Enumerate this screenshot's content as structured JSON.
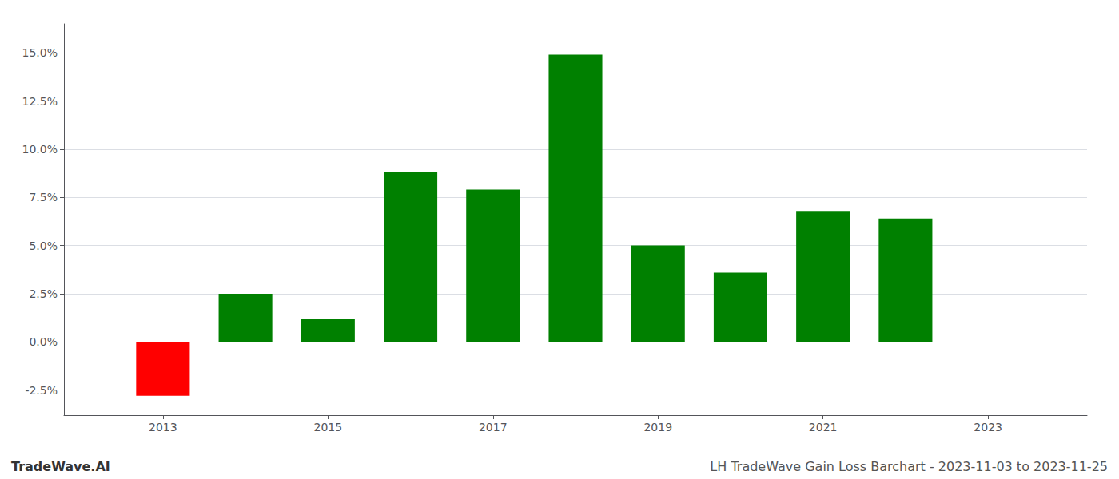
{
  "chart_data": {
    "type": "bar",
    "x": [
      2013,
      2014,
      2015,
      2016,
      2017,
      2018,
      2019,
      2020,
      2021,
      2022
    ],
    "values": [
      -0.028,
      0.025,
      0.012,
      0.088,
      0.079,
      0.149,
      0.05,
      0.036,
      0.068,
      0.064
    ],
    "colors": [
      "#ff0000",
      "#008000",
      "#008000",
      "#008000",
      "#008000",
      "#008000",
      "#008000",
      "#008000",
      "#008000",
      "#008000"
    ],
    "xlim": [
      2011.8,
      2024.2
    ],
    "xticks": [
      2013,
      2015,
      2017,
      2019,
      2021,
      2023
    ],
    "ylim": [
      -0.038,
      0.165
    ],
    "yticks": [
      {
        "value": -0.025,
        "label": "-2.5%"
      },
      {
        "value": 0.0,
        "label": "0.0%"
      },
      {
        "value": 0.025,
        "label": "2.5%"
      },
      {
        "value": 0.05,
        "label": "5.0%"
      },
      {
        "value": 0.075,
        "label": "7.5%"
      },
      {
        "value": 0.1,
        "label": "10.0%"
      },
      {
        "value": 0.125,
        "label": "12.5%"
      },
      {
        "value": 0.15,
        "label": "15.0%"
      }
    ],
    "grid": true,
    "annotations": [
      "TradeWave.AI",
      "LH TradeWave Gain Loss Barchart - 2023-11-03 to 2023-11-25"
    ]
  }
}
